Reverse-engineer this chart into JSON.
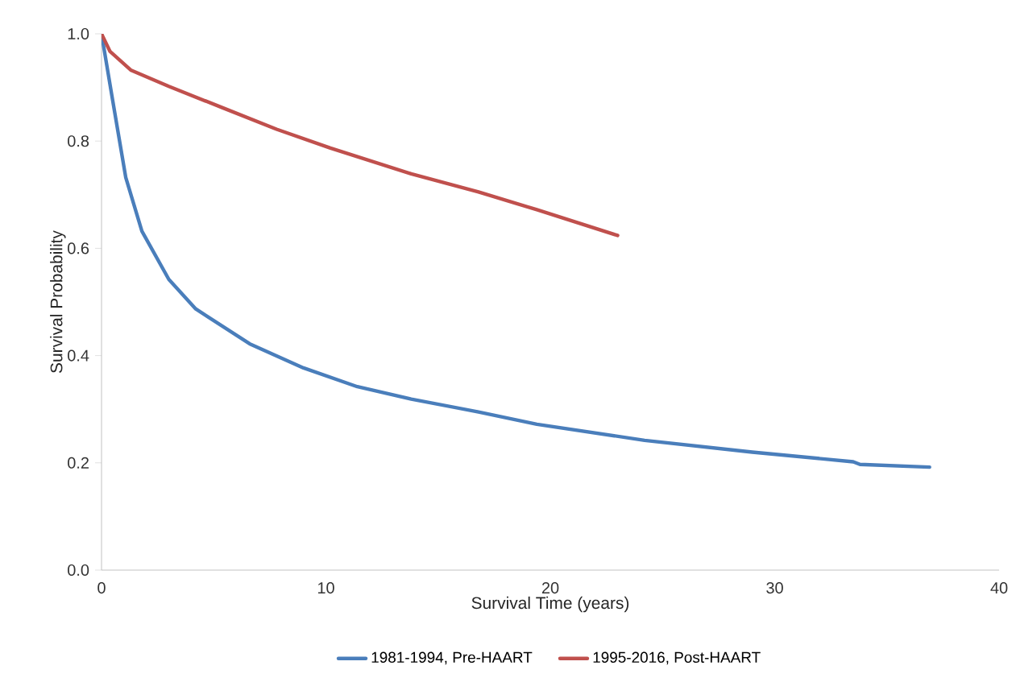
{
  "chart_data": {
    "type": "line",
    "xlabel": "Survival Time (years)",
    "ylabel": "Survival Probability",
    "xlim": [
      0,
      40
    ],
    "xticks": [
      0,
      10,
      20,
      30,
      40
    ],
    "ylim": [
      0,
      1
    ],
    "yticks": [
      {
        "value": 0,
        "label": "0.0"
      },
      0.2,
      0.4,
      0.6,
      0.8,
      {
        "value": 1,
        "label": "1.0"
      }
    ],
    "grid": false,
    "legend": "bottom",
    "marker": "none",
    "line_style": "solid",
    "series": [
      {
        "name": "1981-1994, Pre-HAART",
        "color": "#4a7ebb",
        "x": [
          0,
          0.48,
          1.08,
          1.8,
          3.0,
          4.2,
          6.6,
          9.0,
          11.4,
          13.8,
          16.8,
          19.4,
          24.2,
          29.0,
          33.5,
          33.8,
          36.9
        ],
        "values": [
          1.0,
          0.88,
          0.732,
          0.632,
          0.542,
          0.487,
          0.422,
          0.377,
          0.342,
          0.319,
          0.295,
          0.272,
          0.242,
          0.22,
          0.202,
          0.197,
          0.192
        ]
      },
      {
        "name": "1995-2016, Post-HAART",
        "color": "#c0504d",
        "x": [
          0,
          0.38,
          1.32,
          3.0,
          5.4,
          7.8,
          10.2,
          13.8,
          16.8,
          19.4,
          23.0
        ],
        "values": [
          1.0,
          0.967,
          0.932,
          0.902,
          0.862,
          0.822,
          0.787,
          0.739,
          0.705,
          0.672,
          0.624
        ]
      }
    ]
  }
}
